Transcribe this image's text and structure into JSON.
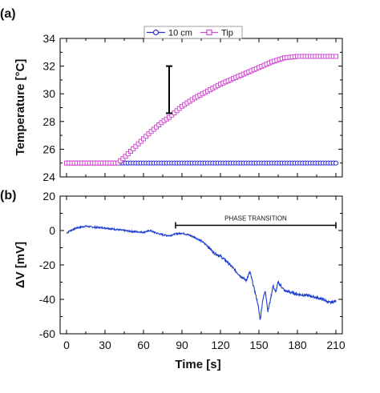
{
  "chart_data": [
    {
      "type": "line",
      "panel_label": "(a)",
      "xlabel": "",
      "ylabel": "Temperature [°C]",
      "xlim": [
        -5,
        215
      ],
      "ylim": [
        24,
        34
      ],
      "x_ticks": [
        0,
        30,
        60,
        90,
        120,
        150,
        180,
        210
      ],
      "y_ticks": [
        24,
        26,
        28,
        30,
        32,
        34
      ],
      "legend_position": "top-center",
      "series": [
        {
          "name": "10 cm",
          "color": "#2b2bd6",
          "marker": "circle",
          "x": [
            0,
            30,
            60,
            90,
            120,
            150,
            180,
            210
          ],
          "y": [
            25.0,
            25.0,
            25.0,
            25.0,
            25.0,
            25.0,
            25.0,
            25.0
          ]
        },
        {
          "name": "Tip",
          "color": "#d04ad0",
          "marker": "square",
          "x": [
            0,
            20,
            40,
            45,
            55,
            65,
            75,
            80,
            90,
            100,
            110,
            120,
            130,
            140,
            150,
            160,
            170,
            180,
            190,
            200,
            210
          ],
          "y": [
            25.0,
            25.0,
            25.0,
            25.4,
            26.3,
            27.2,
            28.0,
            28.3,
            29.1,
            29.7,
            30.2,
            30.7,
            31.1,
            31.5,
            31.9,
            32.3,
            32.6,
            32.7,
            32.7,
            32.7,
            32.7
          ]
        }
      ],
      "annotations": [
        {
          "type": "error-bar",
          "x": 80,
          "y_low": 28.6,
          "y_high": 32.0
        }
      ]
    },
    {
      "type": "line",
      "panel_label": "(b)",
      "xlabel": "Time  [s]",
      "ylabel": "ΔV  [mV]",
      "xlim": [
        -5,
        215
      ],
      "ylim": [
        -60,
        20
      ],
      "x_ticks": [
        0,
        30,
        60,
        90,
        120,
        150,
        180,
        210
      ],
      "y_ticks": [
        -60,
        -40,
        -20,
        0,
        20
      ],
      "series": [
        {
          "name": "",
          "color": "#1f3fd0",
          "x": [
            0,
            3,
            8,
            15,
            20,
            30,
            40,
            50,
            60,
            65,
            70,
            75,
            80,
            85,
            90,
            95,
            100,
            105,
            110,
            115,
            120,
            125,
            130,
            135,
            140,
            143,
            145,
            147,
            149,
            151,
            153,
            155,
            157,
            159,
            161,
            163,
            165,
            170,
            180,
            190,
            200,
            205,
            210
          ],
          "y": [
            -1.5,
            0.0,
            1.5,
            2.5,
            2.0,
            1.5,
            0.5,
            -0.5,
            -1.0,
            0.0,
            -1.5,
            -2.5,
            -3.0,
            -2.0,
            -1.5,
            -2.5,
            -4.0,
            -6.0,
            -9.0,
            -13.0,
            -15.0,
            -18.0,
            -22.0,
            -26.0,
            -29.0,
            -24.0,
            -30.0,
            -36.0,
            -42.0,
            -52.0,
            -40.0,
            -35.0,
            -47.0,
            -40.0,
            -32.0,
            -36.0,
            -30.0,
            -35.0,
            -37.0,
            -38.0,
            -40.0,
            -42.0,
            -41.0
          ]
        }
      ],
      "annotations": [
        {
          "type": "span",
          "label": "PHASE TRANSITION",
          "x_start": 85,
          "x_end": 210,
          "y": 3
        }
      ]
    }
  ]
}
